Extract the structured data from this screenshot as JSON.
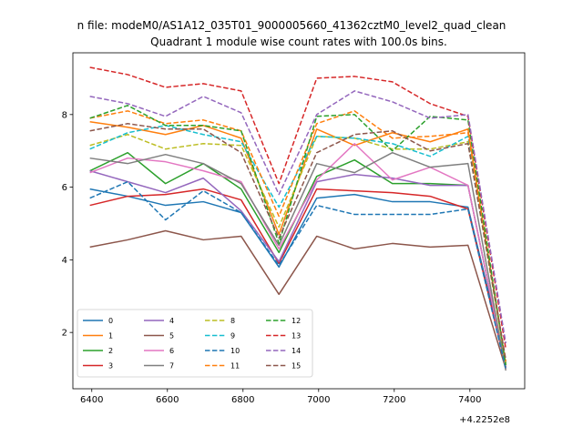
{
  "chart_data": {
    "type": "line",
    "suptitle": "n file: modeM0/AS1A12_035T01_9000005660_41362cztM0_level2_quad_clean",
    "title": "Quadrant 1 module wise count rates with 100.0s bins.",
    "xlabel": "",
    "ylabel": "",
    "offset_text": "+4.2252e8",
    "x": [
      6395,
      6495,
      6595,
      6695,
      6795,
      6895,
      6995,
      7095,
      7195,
      7295,
      7395,
      7495
    ],
    "xlim": [
      6350,
      7545
    ],
    "ylim": [
      0.45,
      9.7
    ],
    "xticks": [
      6400,
      6600,
      6800,
      7000,
      7200,
      7400
    ],
    "yticks": [
      2,
      4,
      6,
      8
    ],
    "legend_position": "lower-left",
    "legend_columns": 4,
    "grid": false,
    "series": [
      {
        "name": "0",
        "color": "#1f77b4",
        "dash": "solid",
        "values": [
          5.95,
          5.75,
          5.5,
          5.6,
          5.3,
          3.8,
          5.7,
          5.8,
          5.6,
          5.6,
          5.45,
          1.15
        ]
      },
      {
        "name": "1",
        "color": "#ff7f0e",
        "dash": "solid",
        "values": [
          7.8,
          7.65,
          7.45,
          7.7,
          7.35,
          4.7,
          7.6,
          7.15,
          7.5,
          7.25,
          7.6,
          1.1
        ]
      },
      {
        "name": "2",
        "color": "#2ca02c",
        "dash": "solid",
        "values": [
          6.45,
          6.95,
          6.1,
          6.65,
          5.95,
          4.2,
          6.3,
          6.75,
          6.1,
          6.1,
          6.05,
          1.0
        ]
      },
      {
        "name": "3",
        "color": "#d62728",
        "dash": "solid",
        "values": [
          5.5,
          5.75,
          5.8,
          5.95,
          5.65,
          3.9,
          5.95,
          5.9,
          5.85,
          5.75,
          5.4,
          1.05
        ]
      },
      {
        "name": "4",
        "color": "#9467bd",
        "dash": "solid",
        "values": [
          6.45,
          6.15,
          5.85,
          6.25,
          5.35,
          3.95,
          6.15,
          6.35,
          6.25,
          6.05,
          6.05,
          1.0
        ]
      },
      {
        "name": "5",
        "color": "#8c564b",
        "dash": "solid",
        "values": [
          4.35,
          4.55,
          4.8,
          4.55,
          4.65,
          3.05,
          4.65,
          4.3,
          4.45,
          4.35,
          4.4,
          1.0
        ]
      },
      {
        "name": "6",
        "color": "#e377c2",
        "dash": "solid",
        "values": [
          6.4,
          6.8,
          6.7,
          6.45,
          6.15,
          4.3,
          6.2,
          7.2,
          6.2,
          6.55,
          6.05,
          1.0
        ]
      },
      {
        "name": "7",
        "color": "#7f7f7f",
        "dash": "solid",
        "values": [
          6.8,
          6.65,
          6.9,
          6.65,
          6.1,
          4.4,
          6.65,
          6.4,
          6.95,
          6.55,
          6.65,
          0.95
        ]
      },
      {
        "name": "8",
        "color": "#bcbd22",
        "dash": "dashed",
        "values": [
          7.15,
          7.45,
          7.05,
          7.2,
          7.15,
          4.9,
          7.4,
          7.35,
          7.05,
          7.05,
          7.25,
          1.15
        ]
      },
      {
        "name": "9",
        "color": "#17becf",
        "dash": "dashed",
        "values": [
          7.05,
          7.5,
          7.7,
          7.45,
          7.25,
          5.45,
          7.4,
          7.35,
          7.2,
          6.85,
          7.4,
          1.2
        ]
      },
      {
        "name": "10",
        "color": "#1f77b4",
        "dash": "dashed",
        "values": [
          5.7,
          6.15,
          5.1,
          5.9,
          5.3,
          3.85,
          5.5,
          5.25,
          5.25,
          5.25,
          5.4,
          1.0
        ]
      },
      {
        "name": "11",
        "color": "#ff7f0e",
        "dash": "dashed",
        "values": [
          7.9,
          8.1,
          7.75,
          7.85,
          7.55,
          5.2,
          7.75,
          8.1,
          7.35,
          7.4,
          7.5,
          1.2
        ]
      },
      {
        "name": "12",
        "color": "#2ca02c",
        "dash": "dashed",
        "values": [
          7.9,
          8.25,
          7.7,
          7.7,
          7.55,
          4.45,
          7.95,
          8.0,
          7.0,
          7.95,
          7.85,
          1.1
        ]
      },
      {
        "name": "13",
        "color": "#d62728",
        "dash": "dashed",
        "values": [
          9.3,
          9.1,
          8.75,
          8.85,
          8.65,
          6.1,
          9.0,
          9.05,
          8.9,
          8.3,
          7.95,
          1.55
        ]
      },
      {
        "name": "14",
        "color": "#9467bd",
        "dash": "dashed",
        "values": [
          8.5,
          8.3,
          7.95,
          8.5,
          8.05,
          5.8,
          8.0,
          8.65,
          8.35,
          7.9,
          8.0,
          1.7
        ]
      },
      {
        "name": "15",
        "color": "#8c564b",
        "dash": "dashed",
        "values": [
          7.55,
          7.75,
          7.6,
          7.6,
          6.95,
          4.6,
          6.95,
          7.45,
          7.55,
          7.0,
          7.2,
          1.25
        ]
      }
    ]
  }
}
